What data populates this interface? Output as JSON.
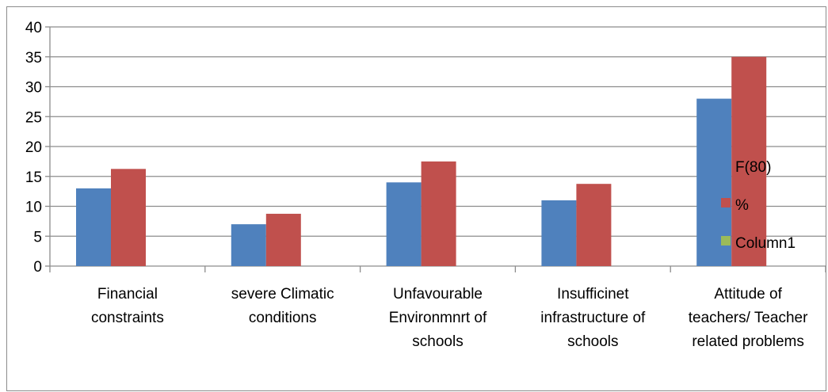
{
  "chart_data": {
    "type": "bar",
    "categories": [
      [
        "Financial",
        "constraints"
      ],
      [
        "severe Climatic",
        "conditions"
      ],
      [
        "Unfavourable",
        "Environmnrt of",
        "schools"
      ],
      [
        "Insufficinet",
        "infrastructure of",
        "schools"
      ],
      [
        "Attitude of",
        "teachers/ Teacher",
        "related problems"
      ]
    ],
    "series": [
      {
        "name": "F(80)",
        "color": "#4f81bd",
        "values": [
          13,
          7,
          14,
          11,
          28
        ]
      },
      {
        "name": "%",
        "color": "#c0504d",
        "values": [
          16.25,
          8.75,
          17.5,
          13.75,
          35
        ]
      },
      {
        "name": "Column1",
        "color": "#9bbb59",
        "values": [
          null,
          null,
          null,
          null,
          null
        ]
      }
    ],
    "ylim": [
      0,
      40
    ],
    "yticks": [
      "0",
      "5",
      "10",
      "15",
      "20",
      "25",
      "30",
      "35",
      "40"
    ],
    "grid": true,
    "legend": "right",
    "title": "",
    "xlabel": "",
    "ylabel": ""
  }
}
